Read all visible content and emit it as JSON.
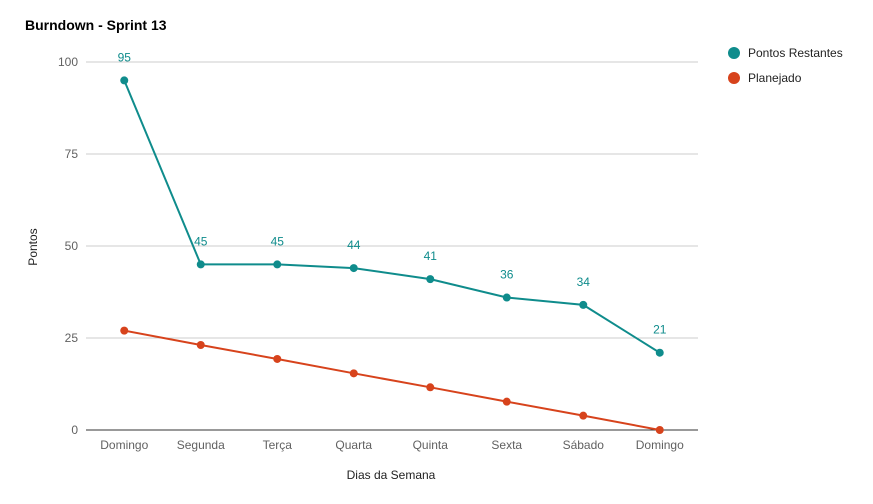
{
  "chart_data": {
    "type": "line",
    "title": "Burndown - Sprint 13",
    "xlabel": "Dias da Semana",
    "ylabel": "Pontos",
    "categories": [
      "Domingo",
      "Segunda",
      "Terça",
      "Quarta",
      "Quinta",
      "Sexta",
      "Sábado",
      "Domingo"
    ],
    "ylim": [
      0,
      100
    ],
    "yticks": [
      0,
      25,
      50,
      75,
      100
    ],
    "grid": true,
    "legend_position": "right",
    "series": [
      {
        "name": "Pontos Restantes",
        "color": "#0f8c8c",
        "values": [
          95,
          45,
          45,
          44,
          41,
          36,
          34,
          21
        ],
        "data_labels": true
      },
      {
        "name": "Planejado",
        "color": "#d7431c",
        "values": [
          27,
          23.1,
          19.3,
          15.4,
          11.6,
          7.7,
          3.9,
          0
        ],
        "data_labels": false
      }
    ]
  }
}
